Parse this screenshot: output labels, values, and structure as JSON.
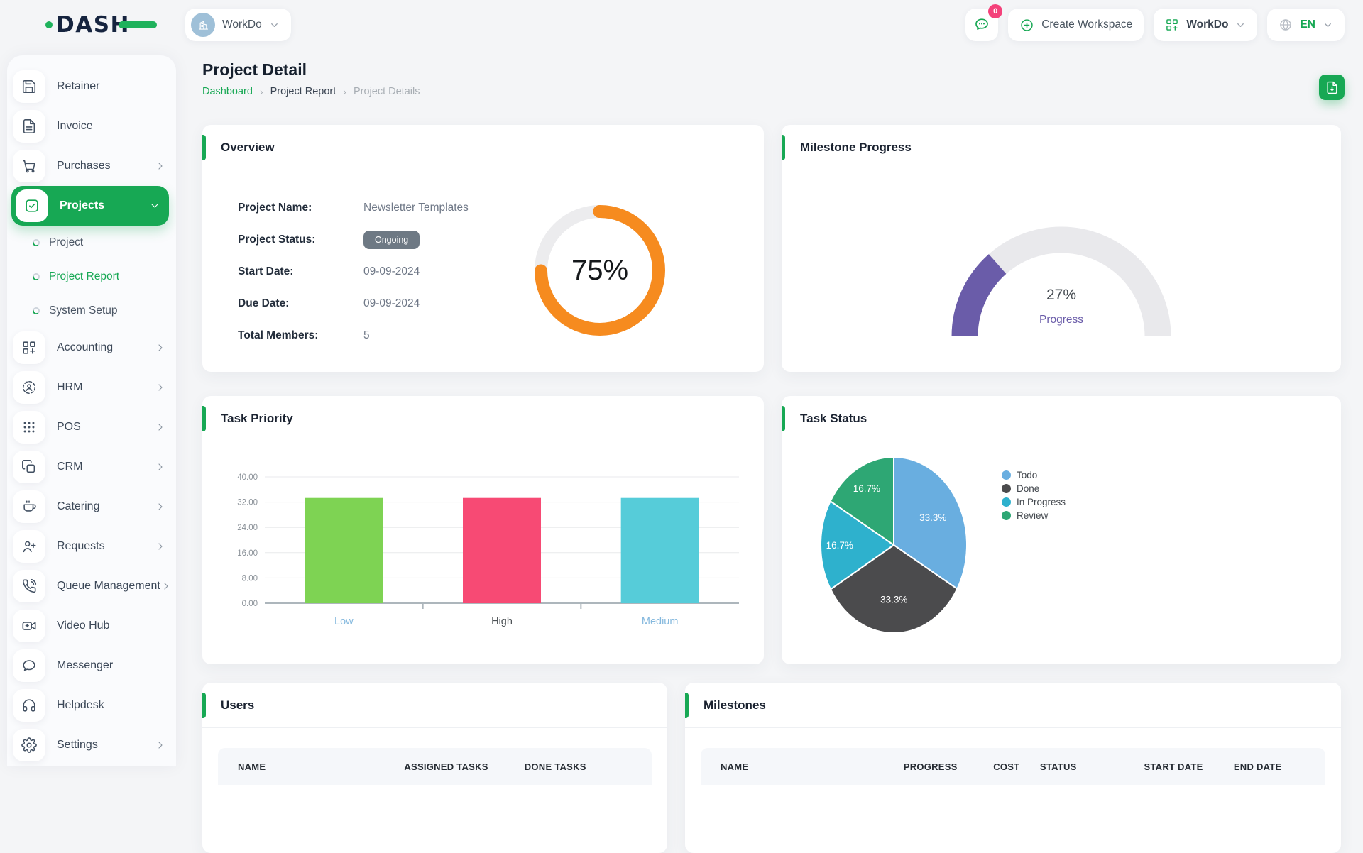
{
  "app": {
    "logo": "DASH",
    "accent_color": "#17A854"
  },
  "topbar": {
    "workspace_chip": {
      "label": "WorkDo",
      "avatar_icon": "building-icon"
    },
    "chat": {
      "icon": "chat-icon",
      "badge": "0",
      "badge_color": "#F4417A"
    },
    "create_workspace": {
      "label": "Create Workspace",
      "icon": "plus-circle-icon"
    },
    "workspace_menu": {
      "label": "WorkDo",
      "icon": "grid-plus-icon"
    },
    "language": {
      "label": "EN",
      "icon": "globe-icon"
    }
  },
  "sidebar": {
    "items": [
      {
        "label": "Retainer",
        "icon": "save-icon",
        "chevron": false
      },
      {
        "label": "Invoice",
        "icon": "invoice-icon",
        "chevron": false
      },
      {
        "label": "Purchases",
        "icon": "cart-icon",
        "chevron": true
      },
      {
        "label": "Projects",
        "icon": "check-square-icon",
        "chevron": true,
        "active": true,
        "expanded": true,
        "children": [
          {
            "label": "Project"
          },
          {
            "label": "Project Report",
            "active": true
          },
          {
            "label": "System Setup"
          }
        ]
      },
      {
        "label": "Accounting",
        "icon": "grid-plus-icon",
        "chevron": true
      },
      {
        "label": "HRM",
        "icon": "user-scan-icon",
        "chevron": true
      },
      {
        "label": "POS",
        "icon": "dots-grid-icon",
        "chevron": true
      },
      {
        "label": "CRM",
        "icon": "copy-icon",
        "chevron": true
      },
      {
        "label": "Catering",
        "icon": "coffee-icon",
        "chevron": true
      },
      {
        "label": "Requests",
        "icon": "user-plus-icon",
        "chevron": true
      },
      {
        "label": "Queue Management",
        "icon": "phone-call-icon",
        "chevron": true
      },
      {
        "label": "Video Hub",
        "icon": "video-icon",
        "chevron": false
      },
      {
        "label": "Messenger",
        "icon": "message-icon",
        "chevron": false
      },
      {
        "label": "Helpdesk",
        "icon": "headphones-icon",
        "chevron": false
      },
      {
        "label": "Settings",
        "icon": "gear-icon",
        "chevron": true
      }
    ]
  },
  "header": {
    "title": "Project Detail",
    "breadcrumb": [
      "Dashboard",
      "Project Report",
      "Project Details"
    ],
    "export_icon": "file-export-icon"
  },
  "overview": {
    "title": "Overview",
    "rows": [
      {
        "label": "Project Name:",
        "value": "Newsletter Templates",
        "type": "text"
      },
      {
        "label": "Project Status:",
        "value": "Ongoing",
        "type": "badge"
      },
      {
        "label": "Start Date:",
        "value": "09-09-2024",
        "type": "text"
      },
      {
        "label": "Due Date:",
        "value": "09-09-2024",
        "type": "text"
      },
      {
        "label": "Total Members:",
        "value": "5",
        "type": "text"
      }
    ],
    "donut": {
      "percent": 75,
      "label": "75%",
      "color": "#F68B1F",
      "track": "#ECECEE"
    }
  },
  "milestone_progress": {
    "title": "Milestone Progress",
    "percent": 27,
    "value_label": "27%",
    "sub_label": "Progress",
    "color": "#6A5CA9",
    "track": "#E9E9EC"
  },
  "task_priority": {
    "title": "Task Priority"
  },
  "task_status": {
    "title": "Task Status"
  },
  "users_table": {
    "title": "Users",
    "columns": [
      "NAME",
      "ASSIGNED TASKS",
      "DONE TASKS"
    ]
  },
  "milestones_table": {
    "title": "Milestones",
    "columns": [
      "NAME",
      "PROGRESS",
      "COST",
      "STATUS",
      "START DATE",
      "END DATE"
    ]
  },
  "chart_data": [
    {
      "id": "task_priority",
      "type": "bar",
      "title": "Task Priority",
      "categories": [
        "Low",
        "High",
        "Medium"
      ],
      "values": [
        33.33,
        33.33,
        33.33
      ],
      "bar_colors": [
        "#7ED353",
        "#F74A74",
        "#56CCD9"
      ],
      "category_label_colors": [
        "#85B9DE",
        "#4E5357",
        "#85B9DE"
      ],
      "xlabel": "",
      "ylabel": "",
      "ylim": [
        0,
        40
      ],
      "ytick_step": 8,
      "ytick_decimals": 2,
      "grid": true,
      "legend": "none"
    },
    {
      "id": "task_status",
      "type": "pie",
      "title": "Task Status",
      "series": [
        {
          "name": "Todo",
          "value": 33.3,
          "color": "#69AEE0"
        },
        {
          "name": "Done",
          "value": 33.3,
          "color": "#4B4B4D"
        },
        {
          "name": "In Progress",
          "value": 16.7,
          "color": "#2EB1CD"
        },
        {
          "name": "Review",
          "value": 16.7,
          "color": "#2EA774"
        }
      ],
      "labels": [
        "33.3%",
        "33.3%",
        "16.7%",
        "16.7%"
      ],
      "legend_position": "right",
      "start_angle_deg": 0,
      "direction": "clockwise"
    },
    {
      "id": "overview_completion",
      "type": "donut",
      "value": 75,
      "label": "75%",
      "color": "#F68B1F",
      "track": "#ECECEE"
    },
    {
      "id": "milestone_progress",
      "type": "gauge",
      "value": 27,
      "label": "27%",
      "sublabel": "Progress",
      "color": "#6A5CA9",
      "track": "#E9E9EC"
    }
  ]
}
